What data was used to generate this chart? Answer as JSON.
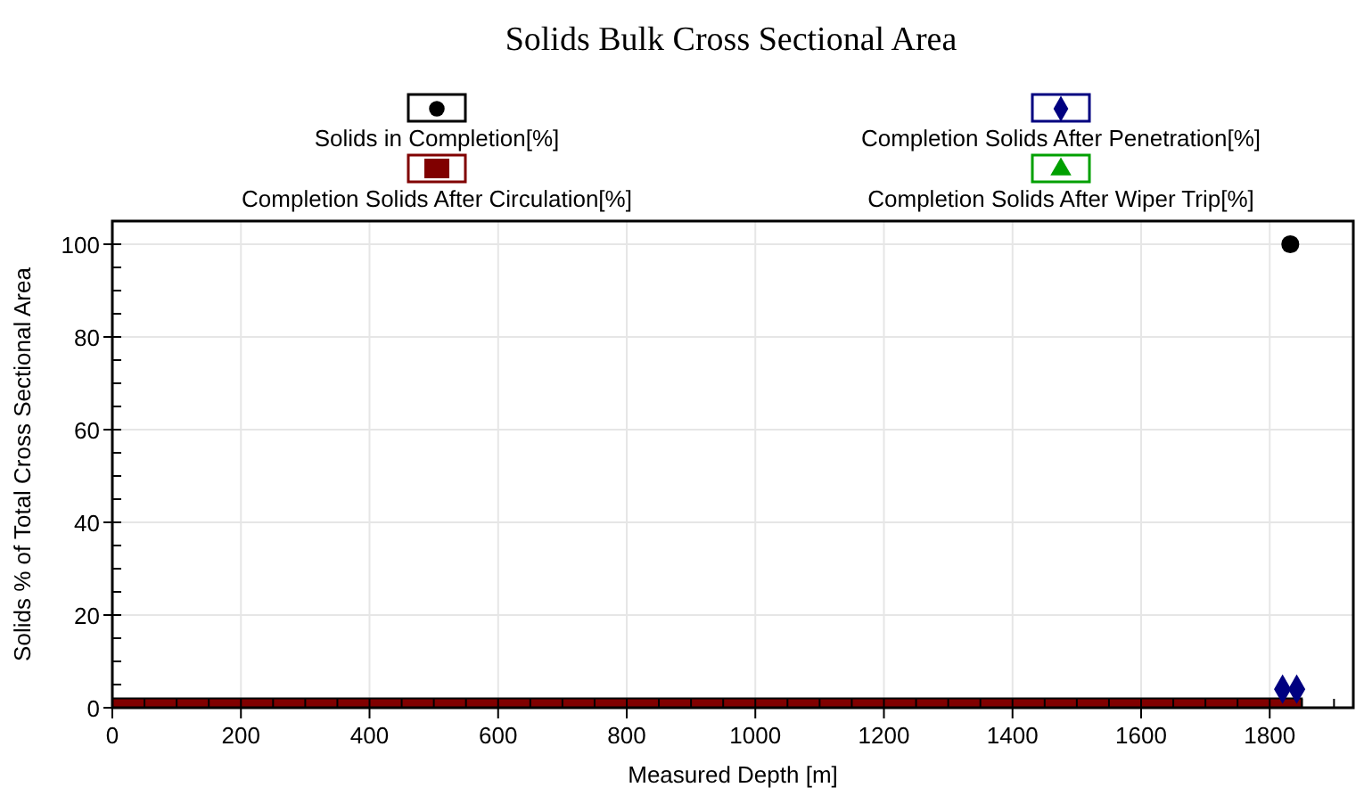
{
  "chart_data": {
    "type": "scatter",
    "title": "Solids Bulk Cross Sectional Area",
    "xlabel": "Measured Depth [m]",
    "ylabel": "Solids % of Total Cross Sectional Area",
    "xlim": [
      0,
      1930
    ],
    "xticks": [
      0,
      200,
      400,
      600,
      800,
      1000,
      1200,
      1400,
      1600,
      1800
    ],
    "ylim": [
      0,
      105
    ],
    "yticks": [
      0,
      20,
      40,
      60,
      80,
      100
    ],
    "grid": true,
    "legend": "top",
    "series": [
      {
        "name": "Solids in Completion[%]",
        "color": "#000000",
        "marker": "circle",
        "x": [
          1832
        ],
        "values": [
          100
        ]
      },
      {
        "name": "Completion Solids After Circulation[%]",
        "color": "#800000",
        "type": "area",
        "marker": "none",
        "x": [
          0,
          1850
        ],
        "values": [
          2,
          2
        ]
      },
      {
        "name": "Completion Solids After Penetration[%]",
        "color": "#000080",
        "marker": "diamond",
        "x": [
          1820,
          1842
        ],
        "values": [
          4,
          4
        ]
      },
      {
        "name": "Completion Solids After Wiper Trip[%]",
        "color": "#00a000",
        "marker": "triangle"
      }
    ]
  }
}
